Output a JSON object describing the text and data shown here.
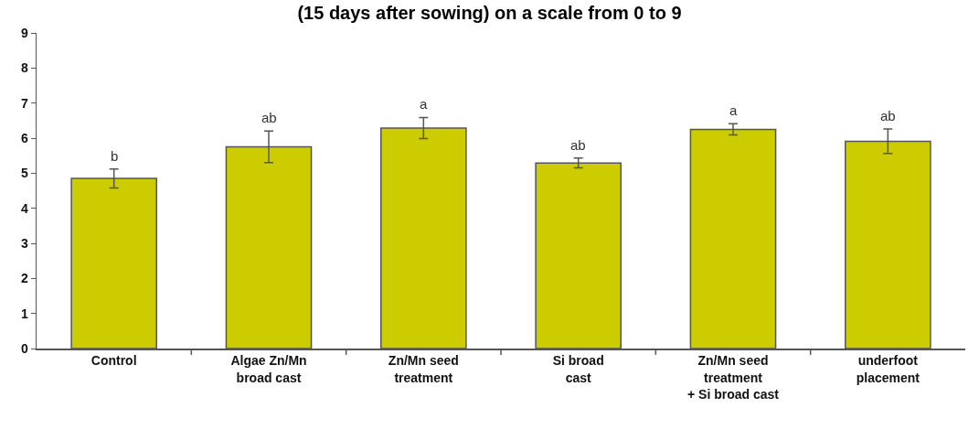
{
  "chart_data": {
    "type": "bar",
    "title": "(15 days after sowing) on a scale from 0 to 9",
    "categories": [
      "Control",
      "Algae Zn/Mn\nbroad cast",
      "Zn/Mn seed\ntreatment",
      "Si broad\ncast",
      "Zn/Mn seed\ntreatment\n+ Si broad cast",
      "underfoot\nplacement"
    ],
    "values": [
      4.85,
      5.75,
      6.29,
      5.29,
      6.25,
      5.91
    ],
    "errors": [
      0.27,
      0.45,
      0.3,
      0.14,
      0.16,
      0.35
    ],
    "color": "#cccc00",
    "ylim": [
      0,
      9
    ],
    "yticks": [
      0,
      1,
      2,
      3,
      4,
      5,
      6,
      7,
      8,
      9
    ],
    "grid": false,
    "annotations": [
      {
        "text": "b",
        "x": "Control",
        "y": 5.12
      },
      {
        "text": "ab",
        "x": "Algae Zn/Mn\nbroad cast",
        "y": 6.2
      },
      {
        "text": "a",
        "x": "Zn/Mn seed\ntreatment",
        "y": 6.59
      },
      {
        "text": "ab",
        "x": "Si broad\ncast",
        "y": 5.43
      },
      {
        "text": "a",
        "x": "Zn/Mn seed\ntreatment\n+ Si broad cast",
        "y": 6.41
      },
      {
        "text": "ab",
        "x": "underfoot\nplacement",
        "y": 6.26
      }
    ]
  }
}
